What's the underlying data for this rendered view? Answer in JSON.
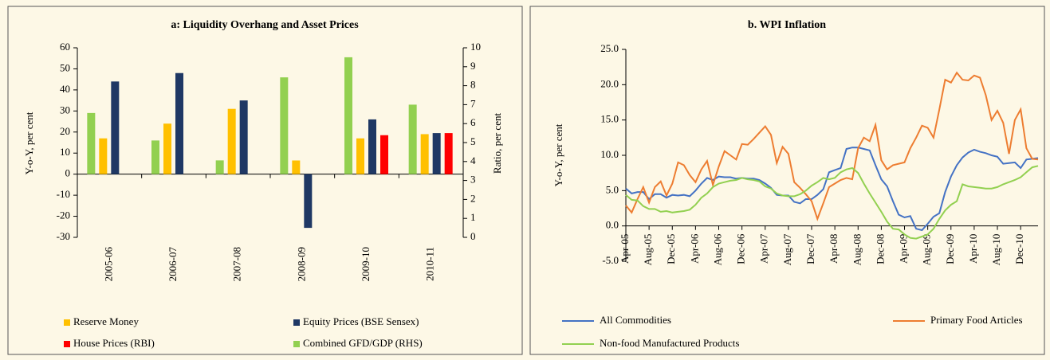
{
  "chart_data": [
    {
      "type": "bar",
      "title": "a: Liquidity Overhang and Asset Prices",
      "ylabel": "Y-o-Y, per cent",
      "y2label": "Ratio, per cent",
      "categories": [
        "2005-06",
        "2006-07",
        "2007-08",
        "2008-09",
        "2009-10",
        "2010-11"
      ],
      "series": [
        {
          "name": "Reserve Money",
          "color": "#ffc000",
          "values": [
            17,
            24,
            31,
            6.5,
            17,
            19
          ]
        },
        {
          "name": "Equity Prices (BSE Sensex)",
          "color": "#1f3864",
          "values": [
            44,
            48,
            35,
            -25.5,
            26,
            19.5
          ]
        },
        {
          "name": "House Prices (RBI)",
          "color": "#ff0000",
          "values": [
            null,
            null,
            null,
            null,
            18.5,
            19.5
          ]
        },
        {
          "name": "Combined GFD/GDP (RHS)",
          "color": "#92d050",
          "axis": "y2",
          "values": [
            6.56,
            5.11,
            4.06,
            8.44,
            9.5,
            7.0
          ]
        }
      ],
      "ylim": [
        -30,
        60
      ],
      "yticks": [
        -30,
        -20,
        -10,
        0,
        10,
        20,
        30,
        40,
        50,
        60
      ],
      "y2lim": [
        0,
        10
      ],
      "y2ticks": [
        0,
        1,
        2,
        3,
        4,
        5,
        6,
        7,
        8,
        9,
        10
      ]
    },
    {
      "type": "line",
      "title": "b. WPI Inflation",
      "ylabel": "Y-o-Y, per cent",
      "categories": [
        "Apr-05",
        null,
        null,
        null,
        "Aug-05",
        null,
        null,
        null,
        "Dec-05",
        null,
        null,
        null,
        "Apr-06",
        null,
        null,
        null,
        "Aug-06",
        null,
        null,
        null,
        "Dec-06",
        null,
        null,
        null,
        "Apr-07",
        null,
        null,
        null,
        "Aug-07",
        null,
        null,
        null,
        "Dec-07",
        null,
        null,
        null,
        "Apr-08",
        null,
        null,
        null,
        "Aug-08",
        null,
        null,
        null,
        "Dec-08",
        null,
        null,
        null,
        "Apr-09",
        null,
        null,
        null,
        "Aug-09",
        null,
        null,
        null,
        "Dec-09",
        null,
        null,
        null,
        "Apr-10",
        null,
        null,
        null,
        "Aug-10",
        null,
        null,
        null,
        "Dec-10",
        null,
        null,
        null
      ],
      "series": [
        {
          "name": "All Commodities",
          "color": "#4472c4",
          "values": [
            5.3,
            4.6,
            4.8,
            4.8,
            3.8,
            4.5,
            4.5,
            4.0,
            4.4,
            4.3,
            4.4,
            4.2,
            5.0,
            6.0,
            6.8,
            6.5,
            7.0,
            6.9,
            6.9,
            6.7,
            6.8,
            6.7,
            6.7,
            6.5,
            6.0,
            5.4,
            4.4,
            4.3,
            4.3,
            3.4,
            3.2,
            3.8,
            3.8,
            4.4,
            5.2,
            7.6,
            7.9,
            8.2,
            10.9,
            11.1,
            11.1,
            10.9,
            10.7,
            8.6,
            6.6,
            5.6,
            3.5,
            1.6,
            1.2,
            1.4,
            -0.4,
            -0.6,
            0.3,
            1.3,
            1.8,
            4.8,
            7.0,
            8.6,
            9.7,
            10.4,
            10.8,
            10.5,
            10.3,
            10.0,
            9.8,
            8.8,
            8.9,
            9.0,
            8.2,
            9.4,
            9.5,
            9.6
          ]
        },
        {
          "name": "Primary Food Articles",
          "color": "#ed7d31",
          "values": [
            2.9,
            1.9,
            3.8,
            5.5,
            3.3,
            5.5,
            6.3,
            4.3,
            6.0,
            9.0,
            8.6,
            7.2,
            6.2,
            8.0,
            9.2,
            5.8,
            8.4,
            10.6,
            10.0,
            9.4,
            11.6,
            11.5,
            12.3,
            13.2,
            14.1,
            12.9,
            8.9,
            11.2,
            10.2,
            6.2,
            5.4,
            4.5,
            3.5,
            1.0,
            3.2,
            5.5,
            6.0,
            6.5,
            6.8,
            6.6,
            11.0,
            12.5,
            12.0,
            14.3,
            9.3,
            8.0,
            8.6,
            8.8,
            9.0,
            11.0,
            12.5,
            14.2,
            13.9,
            12.5,
            16.5,
            20.7,
            20.3,
            21.7,
            20.7,
            20.6,
            21.3,
            21.0,
            18.5,
            15.0,
            16.3,
            14.6,
            10.2,
            15.0,
            16.5,
            11.0,
            9.5,
            9.4
          ]
        },
        {
          "name": "Non-food Manufactured Products",
          "color": "#92d050",
          "values": [
            4.4,
            3.7,
            3.6,
            2.8,
            2.4,
            2.4,
            2.0,
            2.1,
            1.9,
            2.0,
            2.1,
            2.3,
            3.0,
            4.0,
            4.6,
            5.5,
            6.0,
            6.2,
            6.4,
            6.5,
            6.8,
            6.6,
            6.5,
            6.3,
            5.6,
            5.3,
            4.6,
            4.3,
            4.2,
            4.2,
            4.5,
            5.0,
            5.7,
            6.2,
            6.8,
            6.6,
            6.8,
            7.6,
            8.0,
            8.2,
            7.5,
            6.0,
            4.6,
            3.3,
            2.0,
            0.6,
            -0.4,
            -0.5,
            -1.2,
            -1.7,
            -1.8,
            -1.5,
            -1.2,
            -0.4,
            1.0,
            2.2,
            3.0,
            3.5,
            5.9,
            5.6,
            5.5,
            5.4,
            5.3,
            5.3,
            5.5,
            5.9,
            6.2,
            6.5,
            6.9,
            7.6,
            8.3,
            8.5
          ]
        }
      ],
      "ylim": [
        -5,
        25
      ],
      "yticks": [
        {
          "value": -5,
          "label": "-5.0"
        },
        {
          "value": 0,
          "label": "0.0"
        },
        {
          "value": 5,
          "label": "5.0"
        },
        {
          "value": 10,
          "label": "10.0"
        },
        {
          "value": 15,
          "label": "15.0"
        },
        {
          "value": 20,
          "label": "20.0"
        },
        {
          "value": 25,
          "label": "25.0"
        }
      ]
    }
  ]
}
